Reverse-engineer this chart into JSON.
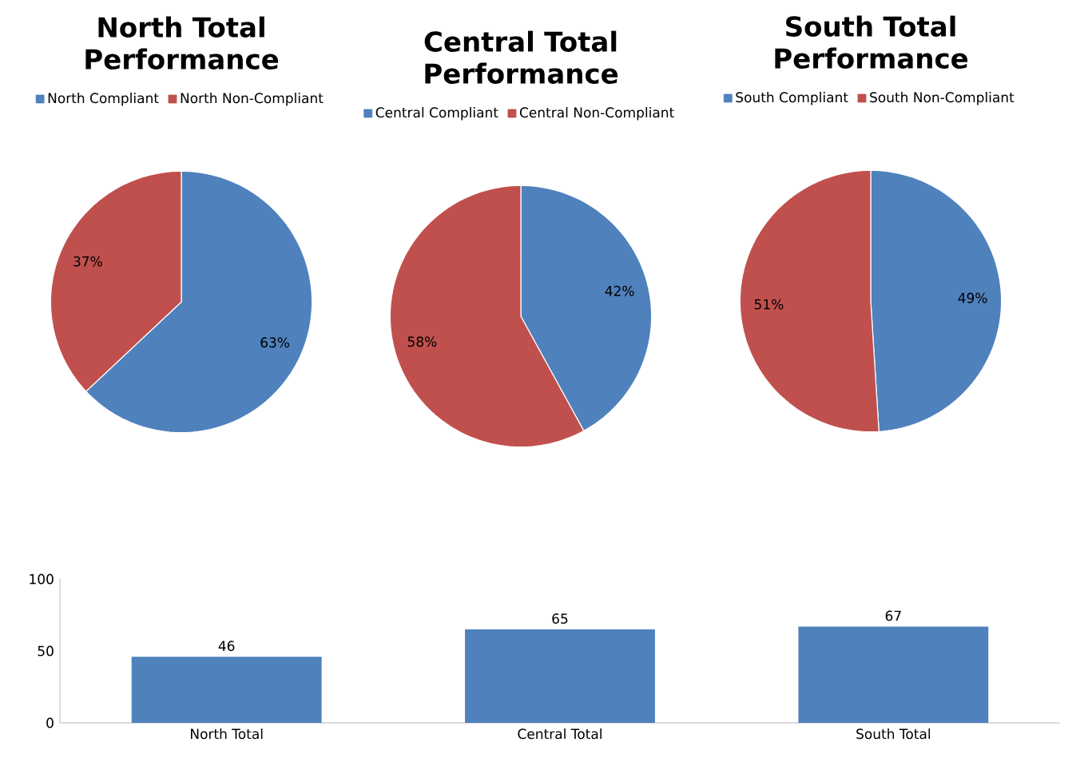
{
  "chart_data": [
    {
      "type": "pie",
      "title": "North Total Performance",
      "categories": [
        "North Compliant",
        "North Non-Compliant"
      ],
      "values": [
        63,
        37
      ],
      "colors": [
        "#4f81bd",
        "#c0504d"
      ],
      "value_labels": [
        "63%",
        "37%"
      ],
      "legend": "top"
    },
    {
      "type": "pie",
      "title": "Central Total Performance",
      "categories": [
        "Central Compliant",
        "Central Non-Compliant"
      ],
      "values": [
        42,
        58
      ],
      "colors": [
        "#4f81bd",
        "#c0504d"
      ],
      "value_labels": [
        "42%",
        "58%"
      ],
      "legend": "top"
    },
    {
      "type": "pie",
      "title": "South Total Performance",
      "categories": [
        "South Compliant",
        "South Non-Compliant"
      ],
      "values": [
        49,
        51
      ],
      "colors": [
        "#4f81bd",
        "#c0504d"
      ],
      "value_labels": [
        "49%",
        "51%"
      ],
      "legend": "top"
    },
    {
      "type": "bar",
      "categories": [
        "North Total",
        "Central Total",
        "South Total"
      ],
      "values": [
        46,
        65,
        67
      ],
      "color": "#4f81bd",
      "value_labels": [
        "46",
        "65",
        "67"
      ],
      "ylim": [
        0,
        100
      ],
      "yticks": [
        0,
        50,
        100
      ]
    }
  ]
}
